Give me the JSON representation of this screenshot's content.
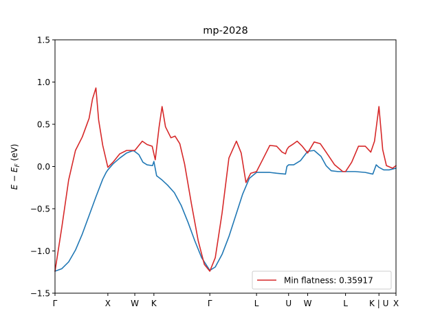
{
  "chart_data": {
    "type": "line",
    "title": "mp-2028",
    "ylabel": "E − E_F (eV)",
    "xlabel": "",
    "ylim": [
      -1.5,
      1.5
    ],
    "xlim": [
      0,
      100
    ],
    "yticks": [
      -1.5,
      -1.0,
      -0.5,
      0.0,
      0.5,
      1.0,
      1.5
    ],
    "ytick_labels": [
      "−1.5",
      "−1.0",
      "−0.5",
      "0.0",
      "0.5",
      "1.0",
      "1.5"
    ],
    "kpath": {
      "labels": [
        "Γ",
        "X",
        "W",
        "K",
        "Γ",
        "L",
        "U",
        "W",
        "L",
        "K | U",
        "X"
      ],
      "positions": [
        0,
        15.5,
        23.4,
        29.0,
        45.4,
        59.1,
        68.5,
        74.1,
        85.2,
        95.0,
        100
      ]
    },
    "legend": {
      "label": "Min flatness: 0.35917",
      "loc": "lower right"
    },
    "grid": false,
    "series": [
      {
        "color": "#1f77b4",
        "x": [
          0,
          2,
          4,
          6,
          8,
          10,
          12,
          14,
          15,
          15.5,
          17,
          19,
          21,
          23,
          24.6,
          25.8,
          27,
          28.6,
          29,
          29.8,
          31.4,
          33,
          35,
          37,
          39,
          41,
          43,
          45.4,
          47,
          49,
          51,
          53,
          55,
          57,
          59.1,
          61,
          63,
          65,
          67.6,
          68.0,
          68.5,
          70,
          72,
          74.1,
          76,
          78,
          79.5,
          81,
          83,
          85.2,
          88,
          91,
          93.2,
          94.2,
          95.0,
          96.4,
          98,
          100
        ],
        "y": [
          -1.24,
          -1.21,
          -1.13,
          -0.99,
          -0.8,
          -0.58,
          -0.36,
          -0.15,
          -0.07,
          -0.04,
          0.03,
          0.1,
          0.16,
          0.19,
          0.14,
          0.05,
          0.02,
          0.01,
          0.06,
          -0.11,
          -0.16,
          -0.22,
          -0.31,
          -0.46,
          -0.66,
          -0.88,
          -1.08,
          -1.23,
          -1.19,
          -1.04,
          -0.83,
          -0.58,
          -0.33,
          -0.14,
          -0.07,
          -0.07,
          -0.07,
          -0.08,
          -0.09,
          0.0,
          0.02,
          0.02,
          0.07,
          0.18,
          0.19,
          0.12,
          0.01,
          -0.05,
          -0.06,
          -0.06,
          -0.06,
          -0.07,
          -0.09,
          0.02,
          -0.01,
          -0.04,
          -0.04,
          -0.02
        ]
      },
      {
        "name": "Min flatness: 0.35917",
        "color": "#d62728",
        "x": [
          0,
          2,
          4,
          6,
          8,
          10,
          11,
          12,
          12.8,
          14,
          15.5,
          17,
          19,
          21,
          23.4,
          25.6,
          27,
          28.5,
          29.4,
          30.5,
          31.4,
          32.4,
          34,
          35.2,
          36.6,
          38,
          40,
          42,
          43.8,
          45.4,
          47,
          49,
          51,
          53.2,
          54.6,
          56,
          57.4,
          59.1,
          61,
          63,
          65,
          66.6,
          67.6,
          68.0,
          68.5,
          70,
          71,
          72.5,
          74.1,
          76,
          77.8,
          79.5,
          82,
          84.4,
          85.2,
          87,
          89,
          91,
          92.6,
          93.7,
          95.0,
          96.1,
          97.2,
          99,
          100
        ],
        "y": [
          -1.24,
          -0.72,
          -0.16,
          0.19,
          0.35,
          0.57,
          0.8,
          0.93,
          0.55,
          0.25,
          -0.01,
          0.05,
          0.15,
          0.19,
          0.19,
          0.3,
          0.26,
          0.24,
          0.08,
          0.46,
          0.71,
          0.47,
          0.34,
          0.36,
          0.27,
          0.03,
          -0.44,
          -0.88,
          -1.16,
          -1.24,
          -1.08,
          -0.55,
          0.1,
          0.3,
          0.16,
          -0.19,
          -0.08,
          -0.06,
          0.09,
          0.25,
          0.24,
          0.17,
          0.15,
          0.2,
          0.23,
          0.27,
          0.3,
          0.24,
          0.16,
          0.29,
          0.27,
          0.17,
          0.02,
          -0.06,
          -0.06,
          0.05,
          0.24,
          0.24,
          0.17,
          0.3,
          0.71,
          0.2,
          0.01,
          -0.02,
          0.01
        ]
      }
    ]
  }
}
